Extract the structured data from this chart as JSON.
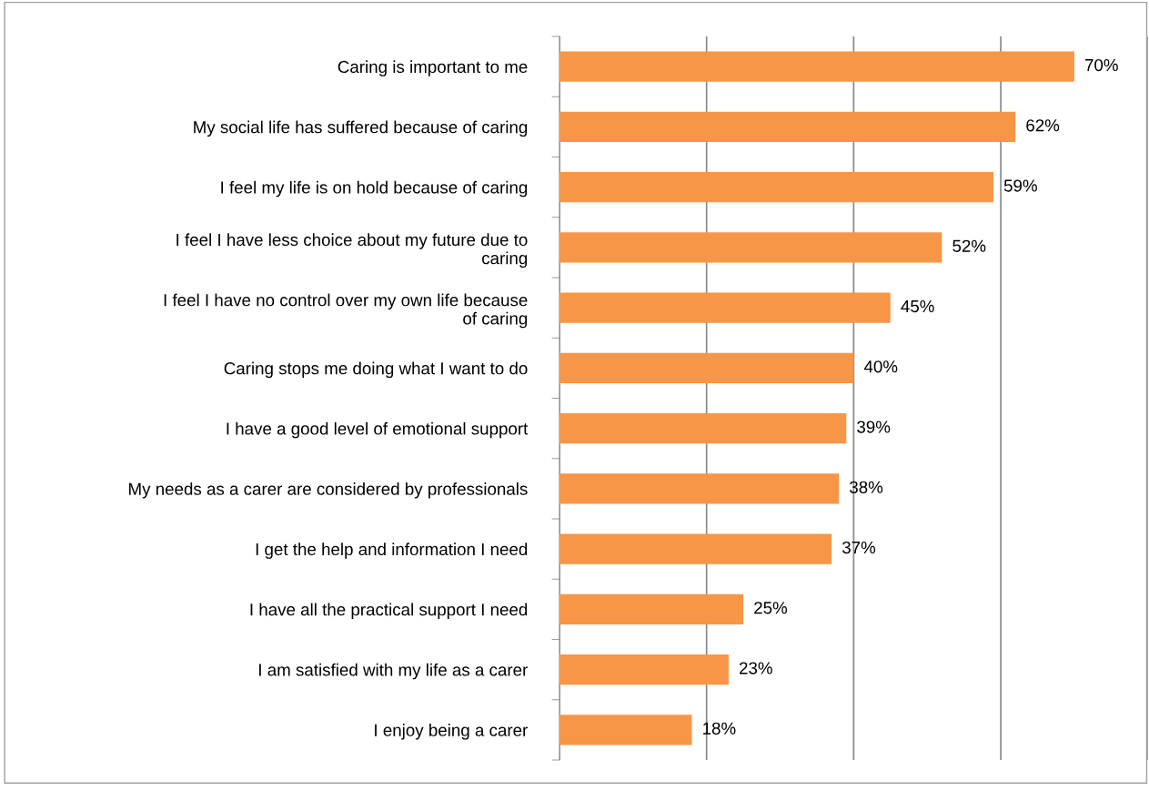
{
  "chart_data": {
    "type": "bar",
    "orientation": "horizontal",
    "categories": [
      "Caring is important to me",
      "My social life has suffered because of caring",
      "I feel my life is on hold because of caring",
      "I feel I have less choice about my future due to caring",
      "I feel I have no control over my own life because of caring",
      "Caring stops me doing what I want to do",
      "I have a good level of emotional support",
      "My needs as a carer are considered by professionals",
      "I get the help and information I need",
      "I have all the practical support I need",
      "I am satisfied with my life as a carer",
      "I enjoy being a carer"
    ],
    "values": [
      70,
      62,
      59,
      52,
      45,
      40,
      39,
      38,
      37,
      25,
      23,
      18
    ],
    "value_labels": [
      "70%",
      "62%",
      "59%",
      "52%",
      "45%",
      "40%",
      "39%",
      "38%",
      "37%",
      "25%",
      "23%",
      "18%"
    ],
    "color": "#f79646",
    "xlim": [
      0,
      80
    ],
    "xticks": [
      {
        "value": 0,
        "label": null
      },
      {
        "value": 20,
        "label": null
      },
      {
        "value": 40,
        "label": null
      },
      {
        "value": 60,
        "label": null
      },
      {
        "value": 80,
        "label": null
      }
    ],
    "grid": "x",
    "tick_labels": "y"
  }
}
